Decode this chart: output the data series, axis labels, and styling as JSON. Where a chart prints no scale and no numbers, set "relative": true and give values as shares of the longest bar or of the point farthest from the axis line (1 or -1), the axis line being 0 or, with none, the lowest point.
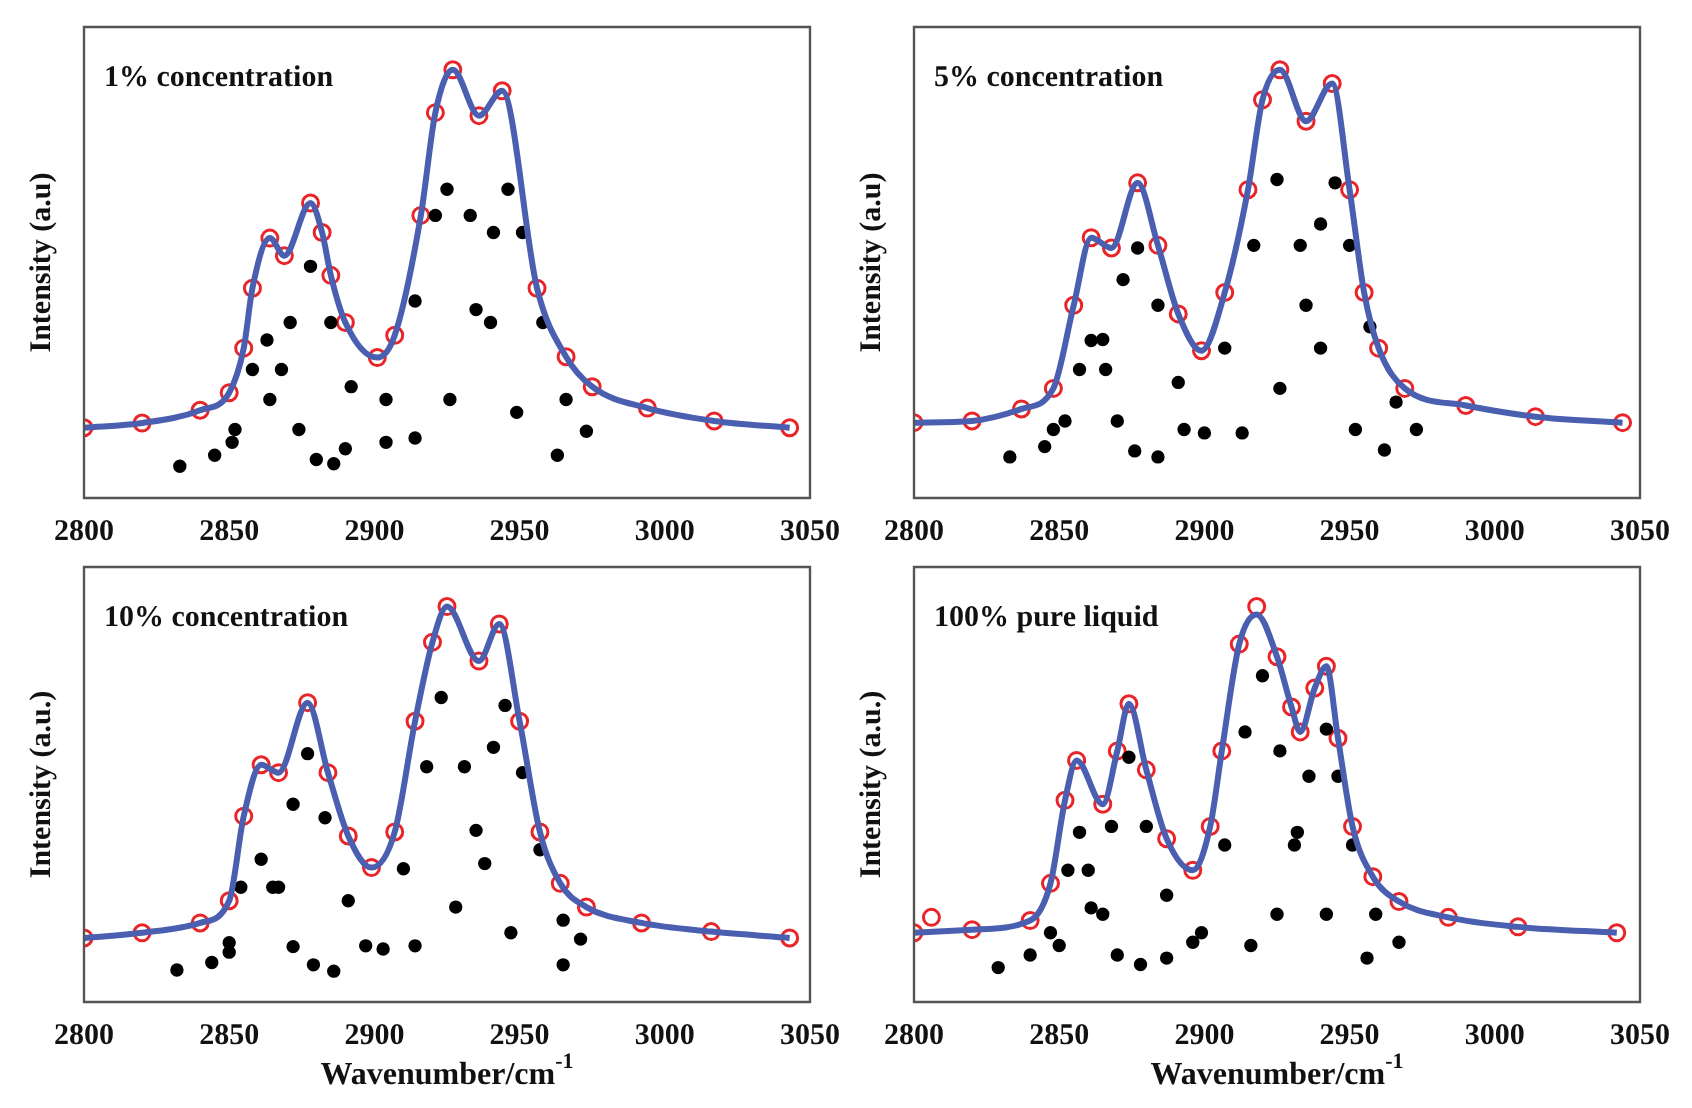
{
  "chart_data": [
    {
      "type": "scatter",
      "ylabel": "Intensity (a.u)",
      "annotations": [
        "1% concentration"
      ],
      "relative": true,
      "xlim": [
        2800,
        3050
      ],
      "xticks": [
        2800,
        2850,
        2900,
        2950,
        3000,
        3050
      ],
      "tick_labels": "x",
      "series": [
        {
          "type": "scatter",
          "marker": "circle",
          "color": "#e8262a",
          "x": [
            2800,
            2820,
            2840,
            2850,
            2855,
            2858,
            2864,
            2869,
            2878,
            2882,
            2885,
            2890,
            2901,
            2907,
            2916,
            2921,
            2927,
            2936,
            2944,
            2956,
            2966,
            2975,
            2994,
            3017,
            3043
          ],
          "values": [
            0.164,
            0.175,
            0.205,
            0.246,
            0.35,
            0.49,
            0.607,
            0.566,
            0.689,
            0.62,
            0.52,
            0.41,
            0.328,
            0.38,
            0.66,
            0.9,
            1.0,
            0.893,
            0.951,
            0.49,
            0.33,
            0.26,
            0.21,
            0.18,
            0.164
          ]
        },
        {
          "type": "line",
          "color": "#4a5fb0",
          "x": [
            2800,
            2820,
            2840,
            2850,
            2855,
            2858,
            2864,
            2869,
            2878,
            2882,
            2885,
            2890,
            2901,
            2907,
            2916,
            2921,
            2927,
            2936,
            2944,
            2956,
            2966,
            2975,
            2994,
            3017,
            3043
          ],
          "values": [
            0.164,
            0.175,
            0.205,
            0.246,
            0.35,
            0.49,
            0.607,
            0.566,
            0.689,
            0.62,
            0.52,
            0.41,
            0.328,
            0.38,
            0.66,
            0.9,
            1.0,
            0.893,
            0.951,
            0.49,
            0.33,
            0.26,
            0.21,
            0.18,
            0.164
          ]
        },
        {
          "type": "scatter",
          "marker": "circle",
          "color": "#000000",
          "x": [
            2833,
            2845,
            2852,
            2858,
            2863,
            2868,
            2874,
            2880,
            2886
          ],
          "values": [
            0.074,
            0.1,
            0.16,
            0.3,
            0.369,
            0.3,
            0.16,
            0.09,
            0.08
          ]
        },
        {
          "type": "scatter",
          "marker": "circle",
          "color": "#000000",
          "x": [
            2851,
            2864,
            2871,
            2878,
            2885,
            2892,
            2904
          ],
          "values": [
            0.13,
            0.23,
            0.41,
            0.541,
            0.41,
            0.26,
            0.13
          ]
        },
        {
          "type": "scatter",
          "marker": "circle",
          "color": "#000000",
          "x": [
            2890,
            2904,
            2914,
            2921,
            2925,
            2933,
            2940,
            2949,
            2963
          ],
          "values": [
            0.115,
            0.23,
            0.46,
            0.66,
            0.721,
            0.66,
            0.41,
            0.2,
            0.1
          ]
        },
        {
          "type": "scatter",
          "marker": "circle",
          "color": "#000000",
          "x": [
            2914,
            2926,
            2935,
            2941,
            2946,
            2951,
            2958,
            2966,
            2973
          ],
          "values": [
            0.14,
            0.23,
            0.44,
            0.62,
            0.721,
            0.62,
            0.41,
            0.23,
            0.156
          ]
        }
      ]
    },
    {
      "type": "scatter",
      "ylabel": "Intensity (a.u)",
      "annotations": [
        "5% concentration"
      ],
      "relative": true,
      "xlim": [
        2800,
        3050
      ],
      "xticks": [
        2800,
        2850,
        2900,
        2950,
        3000,
        3050
      ],
      "tick_labels": "x",
      "series": [
        {
          "type": "scatter",
          "marker": "circle",
          "color": "#e8262a",
          "x": [
            2800,
            2820,
            2837,
            2848,
            2855,
            2861,
            2868,
            2877,
            2884,
            2891,
            2899,
            2907,
            2915,
            2920,
            2926,
            2935,
            2944,
            2950,
            2955,
            2960,
            2969,
            2990,
            3014,
            3044
          ],
          "values": [
            0.176,
            0.18,
            0.208,
            0.256,
            0.45,
            0.608,
            0.584,
            0.736,
            0.59,
            0.43,
            0.344,
            0.48,
            0.72,
            0.93,
            1.0,
            0.88,
            0.968,
            0.72,
            0.48,
            0.35,
            0.256,
            0.216,
            0.19,
            0.176
          ]
        },
        {
          "type": "line",
          "color": "#4a5fb0",
          "x": [
            2800,
            2820,
            2837,
            2848,
            2855,
            2861,
            2868,
            2877,
            2884,
            2891,
            2899,
            2907,
            2915,
            2920,
            2926,
            2935,
            2944,
            2950,
            2955,
            2960,
            2969,
            2990,
            3014,
            3044
          ],
          "values": [
            0.176,
            0.18,
            0.208,
            0.256,
            0.45,
            0.608,
            0.584,
            0.736,
            0.59,
            0.43,
            0.344,
            0.48,
            0.72,
            0.93,
            1.0,
            0.88,
            0.968,
            0.72,
            0.48,
            0.35,
            0.256,
            0.216,
            0.19,
            0.176
          ]
        },
        {
          "type": "scatter",
          "marker": "circle",
          "color": "#000000",
          "x": [
            2833,
            2845,
            2852,
            2857,
            2861,
            2866,
            2870,
            2876,
            2884
          ],
          "values": [
            0.096,
            0.12,
            0.18,
            0.3,
            0.368,
            0.3,
            0.18,
            0.11,
            0.096
          ]
        },
        {
          "type": "scatter",
          "marker": "circle",
          "color": "#000000",
          "x": [
            2848,
            2865,
            2872,
            2877,
            2884,
            2891,
            2900
          ],
          "values": [
            0.16,
            0.37,
            0.51,
            0.584,
            0.45,
            0.27,
            0.152
          ]
        },
        {
          "type": "scatter",
          "marker": "circle",
          "color": "#000000",
          "x": [
            2893,
            2907,
            2917,
            2925,
            2933,
            2940,
            2952,
            2962
          ],
          "values": [
            0.16,
            0.35,
            0.59,
            0.744,
            0.59,
            0.35,
            0.16,
            0.112
          ]
        },
        {
          "type": "scatter",
          "marker": "circle",
          "color": "#000000",
          "x": [
            2913,
            2926,
            2935,
            2940,
            2945,
            2950,
            2957,
            2966,
            2973
          ],
          "values": [
            0.152,
            0.256,
            0.45,
            0.64,
            0.736,
            0.59,
            0.4,
            0.224,
            0.16
          ]
        }
      ]
    },
    {
      "type": "scatter",
      "ylabel": "Intensity (a.u.)",
      "xlabel": "Wavenumber/cm$^{-1}$",
      "annotations": [
        "10% concentration"
      ],
      "relative": true,
      "xlim": [
        2800,
        3050
      ],
      "xticks": [
        2800,
        2850,
        2900,
        2950,
        3000,
        3050
      ],
      "tick_labels": "x",
      "series": [
        {
          "type": "scatter",
          "marker": "circle",
          "color": "#e8262a",
          "x": [
            2800,
            2820,
            2840,
            2850,
            2855,
            2861,
            2867,
            2877,
            2884,
            2891,
            2899,
            2907,
            2914,
            2920,
            2925,
            2936,
            2943,
            2950,
            2957,
            2964,
            2973,
            2992,
            3016,
            3043
          ],
          "values": [
            0.162,
            0.175,
            0.2,
            0.256,
            0.47,
            0.6,
            0.58,
            0.757,
            0.58,
            0.42,
            0.34,
            0.43,
            0.71,
            0.91,
            1.0,
            0.862,
            0.956,
            0.71,
            0.43,
            0.3,
            0.24,
            0.2,
            0.178,
            0.162
          ]
        },
        {
          "type": "line",
          "color": "#4a5fb0",
          "x": [
            2800,
            2820,
            2840,
            2850,
            2855,
            2861,
            2867,
            2877,
            2884,
            2891,
            2899,
            2907,
            2914,
            2920,
            2925,
            2936,
            2943,
            2950,
            2957,
            2964,
            2973,
            2992,
            3016,
            3043
          ],
          "values": [
            0.162,
            0.175,
            0.2,
            0.256,
            0.47,
            0.6,
            0.58,
            0.757,
            0.58,
            0.42,
            0.34,
            0.43,
            0.71,
            0.91,
            1.0,
            0.862,
            0.956,
            0.71,
            0.43,
            0.3,
            0.24,
            0.2,
            0.178,
            0.162
          ]
        },
        {
          "type": "scatter",
          "marker": "circle",
          "color": "#000000",
          "x": [
            2832,
            2844,
            2850,
            2854,
            2861,
            2867,
            2872,
            2879,
            2886
          ],
          "values": [
            0.081,
            0.1,
            0.15,
            0.29,
            0.361,
            0.29,
            0.14,
            0.094,
            0.078
          ]
        },
        {
          "type": "scatter",
          "marker": "circle",
          "color": "#000000",
          "x": [
            2850,
            2865,
            2872,
            2877,
            2883,
            2891,
            2903
          ],
          "values": [
            0.126,
            0.29,
            0.5,
            0.628,
            0.466,
            0.256,
            0.134
          ]
        },
        {
          "type": "scatter",
          "marker": "circle",
          "color": "#000000",
          "x": [
            2897,
            2910,
            2918,
            2923,
            2931,
            2938,
            2947,
            2965
          ],
          "values": [
            0.142,
            0.337,
            0.595,
            0.77,
            0.595,
            0.35,
            0.175,
            0.094
          ]
        },
        {
          "type": "scatter",
          "marker": "circle",
          "color": "#000000",
          "x": [
            2914,
            2928,
            2935,
            2941,
            2945,
            2951,
            2957,
            2965,
            2971
          ],
          "values": [
            0.142,
            0.24,
            0.434,
            0.644,
            0.75,
            0.58,
            0.385,
            0.207,
            0.159
          ]
        }
      ]
    },
    {
      "type": "scatter",
      "ylabel": "Intensity (a.u.)",
      "xlabel": "Wavenumber/cm$^{-1}$",
      "annotations": [
        "100% pure liquid"
      ],
      "relative": true,
      "xlim": [
        2800,
        3050
      ],
      "xticks": [
        2800,
        2850,
        2900,
        2950,
        3000,
        3050
      ],
      "tick_labels": "x",
      "series": [
        {
          "type": "scatter",
          "marker": "circle",
          "color": "#e8262a",
          "x": [
            2800,
            2806,
            2820,
            2840,
            2847,
            2852,
            2856,
            2865,
            2870,
            2874,
            2880,
            2887,
            2896,
            2902,
            2906,
            2912,
            2918,
            2925,
            2930,
            2933,
            2938,
            2942,
            2946,
            2951,
            2958,
            2967,
            2984,
            3008,
            3042
          ],
          "values": [
            0.175,
            0.214,
            0.183,
            0.206,
            0.3,
            0.51,
            0.611,
            0.5,
            0.635,
            0.754,
            0.587,
            0.413,
            0.333,
            0.444,
            0.635,
            0.905,
            1.0,
            0.873,
            0.746,
            0.683,
            0.794,
            0.849,
            0.667,
            0.444,
            0.317,
            0.254,
            0.214,
            0.19,
            0.175
          ]
        },
        {
          "type": "line",
          "color": "#4a5fb0",
          "x": [
            2800,
            2820,
            2840,
            2847,
            2852,
            2856,
            2865,
            2870,
            2874,
            2880,
            2887,
            2896,
            2902,
            2906,
            2912,
            2918,
            2925,
            2930,
            2933,
            2938,
            2942,
            2946,
            2951,
            2958,
            2967,
            2984,
            3008,
            3042
          ],
          "values": [
            0.175,
            0.183,
            0.206,
            0.3,
            0.51,
            0.611,
            0.5,
            0.635,
            0.754,
            0.587,
            0.413,
            0.333,
            0.444,
            0.635,
            0.905,
            0.98,
            0.873,
            0.746,
            0.683,
            0.794,
            0.849,
            0.667,
            0.444,
            0.317,
            0.254,
            0.214,
            0.19,
            0.175
          ]
        },
        {
          "type": "scatter",
          "marker": "circle",
          "color": "#000000",
          "x": [
            2829,
            2840,
            2847,
            2853,
            2857,
            2860,
            2865,
            2870,
            2878
          ],
          "values": [
            0.087,
            0.119,
            0.175,
            0.333,
            0.429,
            0.333,
            0.222,
            0.119,
            0.095
          ]
        },
        {
          "type": "scatter",
          "marker": "circle",
          "color": "#000000",
          "x": [
            2850,
            2861,
            2868,
            2874,
            2880,
            2887,
            2896
          ],
          "values": [
            0.143,
            0.238,
            0.444,
            0.619,
            0.444,
            0.27,
            0.151
          ]
        },
        {
          "type": "scatter",
          "marker": "circle",
          "color": "#000000",
          "x": [
            2887,
            2899,
            2907,
            2914,
            2920,
            2926,
            2932,
            2942,
            2956
          ],
          "values": [
            0.111,
            0.175,
            0.397,
            0.683,
            0.825,
            0.635,
            0.429,
            0.222,
            0.111
          ]
        },
        {
          "type": "scatter",
          "marker": "circle",
          "color": "#000000",
          "x": [
            2916,
            2925,
            2931,
            2936,
            2942,
            2946,
            2951,
            2959,
            2967
          ],
          "values": [
            0.143,
            0.222,
            0.397,
            0.571,
            0.69,
            0.571,
            0.397,
            0.222,
            0.151
          ]
        }
      ]
    }
  ]
}
